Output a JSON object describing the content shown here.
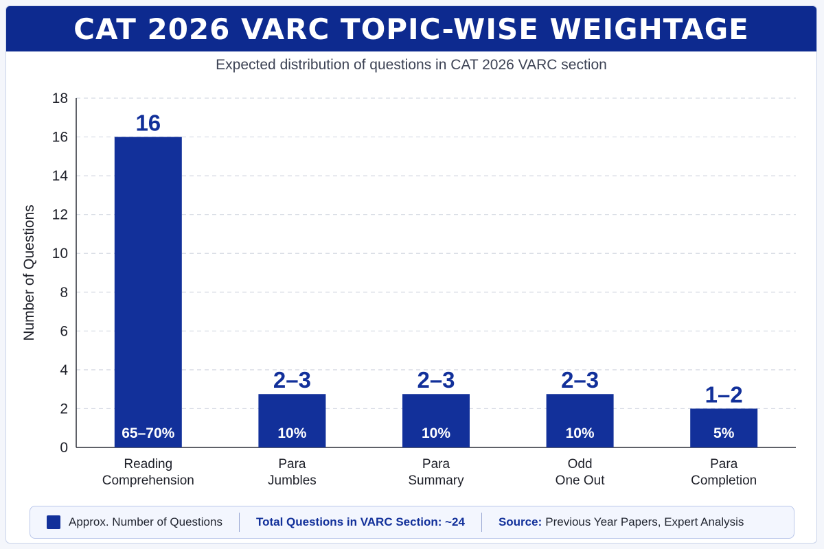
{
  "header": {
    "title": "CAT 2026 VARC TOPIC-WISE WEIGHTAGE",
    "subtitle": "Expected distribution of questions in CAT 2026 VARC section"
  },
  "chart_data": {
    "type": "bar",
    "title": "CAT 2026 VARC TOPIC-WISE WEIGHTAGE",
    "subtitle": "Expected distribution of questions in CAT 2026 VARC section",
    "xlabel": "",
    "ylabel": "Number of Questions",
    "ylim": [
      0,
      18
    ],
    "yticks": [
      0,
      2,
      4,
      6,
      8,
      10,
      12,
      14,
      16,
      18
    ],
    "grid": true,
    "categories": [
      [
        "Reading",
        "Comprehension"
      ],
      [
        "Para",
        "Jumbles"
      ],
      [
        "Para",
        "Summary"
      ],
      [
        "Odd",
        "One Out"
      ],
      [
        "Para",
        "Completion"
      ]
    ],
    "series": [
      {
        "name": "Approx. Number of Questions",
        "values": [
          16,
          2.75,
          2.75,
          2.75,
          2
        ],
        "value_labels": [
          "16",
          "2–3",
          "2–3",
          "2–3",
          "1–2"
        ],
        "share_labels": [
          "65–70%",
          "10%",
          "10%",
          "10%",
          "5%"
        ]
      }
    ],
    "colors": {
      "bar": "#12309a",
      "label": "#12309a",
      "grid": "#d5d9e3"
    }
  },
  "legend": {
    "series_label": "Approx. Number of Questions",
    "total": "Total Questions in VARC Section: ~24",
    "source_label": "Source:",
    "source_text": "Previous Year Papers, Expert Analysis"
  }
}
